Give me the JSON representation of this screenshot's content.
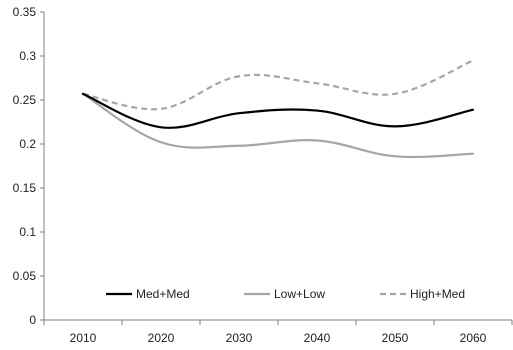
{
  "chart_data": {
    "type": "line",
    "title": "",
    "xlabel": "",
    "ylabel": "",
    "categories": [
      "2010",
      "2020",
      "2030",
      "2040",
      "2050",
      "2060"
    ],
    "x": [
      2010,
      2020,
      2030,
      2040,
      2050,
      2060
    ],
    "ylim": [
      0,
      0.35
    ],
    "y_ticks": [
      "0",
      "0.05",
      "0.1",
      "0.15",
      "0.2",
      "0.25",
      "0.3",
      "0.35"
    ],
    "grid": false,
    "legend_position": "bottom-inside",
    "series": [
      {
        "name": "Med+Med",
        "values": [
          0.257,
          0.219,
          0.235,
          0.238,
          0.22,
          0.239
        ],
        "color": "#000000",
        "dash": "solid"
      },
      {
        "name": "Low+Low",
        "values": [
          0.257,
          0.202,
          0.198,
          0.204,
          0.186,
          0.189
        ],
        "color": "#a6a6a6",
        "dash": "solid"
      },
      {
        "name": "High+Med",
        "values": [
          0.257,
          0.24,
          0.277,
          0.269,
          0.257,
          0.295
        ],
        "color": "#a6a6a6",
        "dash": "dashed"
      }
    ]
  }
}
